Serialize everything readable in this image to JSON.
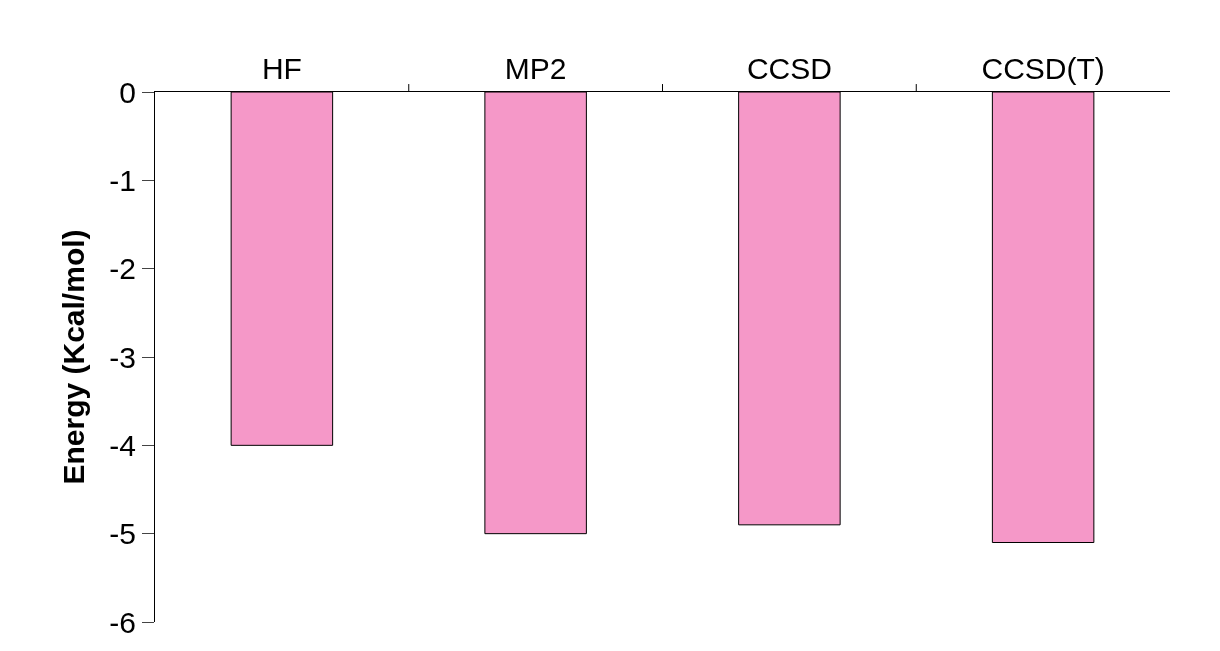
{
  "chart_data": {
    "type": "bar",
    "ylabel": "Energy (Kcal/mol)",
    "categories": [
      "HF",
      "MP2",
      "CCSD",
      "CCSD(T)"
    ],
    "values": [
      -4.0,
      -5.0,
      -4.9,
      -5.1
    ],
    "color": "#f598c8",
    "ylim": [
      -6,
      0
    ],
    "yticks": [
      -6,
      -5,
      -4,
      -3,
      -2,
      -1,
      0
    ]
  }
}
